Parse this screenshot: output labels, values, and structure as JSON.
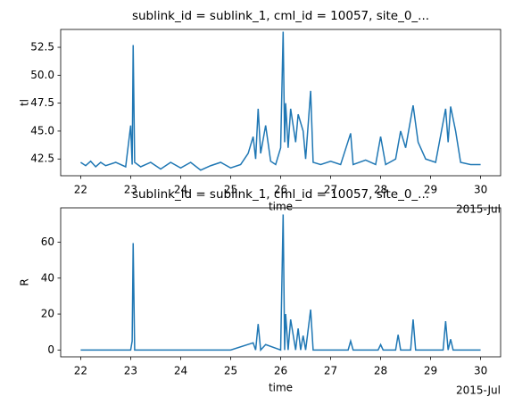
{
  "chart_data": [
    {
      "type": "line",
      "title": "sublink_id = sublink_1, cml_id = 10057, site_0_...",
      "xlabel": "time",
      "ylabel": "tl",
      "x_offset_label": "2015-Jul",
      "color": "#1f77b4",
      "x": [
        22.0,
        22.1,
        22.2,
        22.3,
        22.4,
        22.5,
        22.7,
        22.9,
        23.0,
        23.03,
        23.05,
        23.08,
        23.2,
        23.4,
        23.6,
        23.8,
        24.0,
        24.2,
        24.4,
        24.6,
        24.8,
        25.0,
        25.2,
        25.35,
        25.45,
        25.5,
        25.55,
        25.6,
        25.7,
        25.8,
        25.9,
        26.0,
        26.05,
        26.08,
        26.1,
        26.15,
        26.2,
        26.3,
        26.35,
        26.45,
        26.5,
        26.6,
        26.65,
        26.8,
        27.0,
        27.2,
        27.4,
        27.45,
        27.7,
        27.9,
        28.0,
        28.1,
        28.3,
        28.4,
        28.5,
        28.65,
        28.75,
        28.9,
        29.1,
        29.3,
        29.35,
        29.4,
        29.5,
        29.6,
        29.8,
        30.0
      ],
      "values": [
        42.2,
        41.9,
        42.3,
        41.8,
        42.2,
        41.9,
        42.2,
        41.8,
        45.5,
        42.0,
        52.7,
        42.2,
        41.8,
        42.2,
        41.6,
        42.2,
        41.7,
        42.2,
        41.5,
        41.9,
        42.2,
        41.7,
        42.0,
        43.0,
        44.5,
        42.5,
        47.0,
        43.0,
        45.5,
        42.3,
        42.0,
        43.5,
        53.9,
        44.0,
        47.5,
        43.5,
        47.0,
        44.0,
        46.5,
        45.0,
        42.5,
        48.6,
        42.2,
        42.0,
        42.3,
        42.0,
        44.8,
        42.0,
        42.4,
        42.0,
        44.5,
        42.0,
        42.5,
        45.0,
        43.5,
        47.3,
        44.0,
        42.5,
        42.2,
        47.0,
        44.0,
        47.2,
        45.0,
        42.2,
        42.0,
        42.0
      ],
      "xlim": [
        21.6,
        30.4
      ],
      "xticks": [
        22,
        23,
        24,
        25,
        26,
        27,
        28,
        29,
        30
      ],
      "ylim": [
        41.0,
        54.1
      ],
      "yticks": [
        42.5,
        {
          "value": 45,
          "label": "45.0"
        },
        47.5,
        {
          "value": 50,
          "label": "50.0"
        },
        52.5
      ]
    },
    {
      "type": "line",
      "title": "sublink_id = sublink_1, cml_id = 10057, site_0_...",
      "xlabel": "time",
      "ylabel": "R",
      "x_offset_label": "2015-Jul",
      "color": "#1f77b4",
      "x": [
        22.0,
        23.0,
        23.03,
        23.05,
        23.08,
        25.0,
        25.45,
        25.5,
        25.55,
        25.6,
        25.7,
        26.0,
        26.05,
        26.08,
        26.1,
        26.15,
        26.2,
        26.3,
        26.35,
        26.4,
        26.45,
        26.5,
        26.6,
        26.65,
        27.35,
        27.4,
        27.45,
        27.95,
        28.0,
        28.05,
        28.3,
        28.35,
        28.4,
        28.6,
        28.65,
        28.7,
        29.25,
        29.3,
        29.35,
        29.4,
        29.45,
        30.0
      ],
      "values": [
        0,
        0,
        5,
        59.5,
        0,
        0,
        4,
        0,
        14.5,
        0,
        3,
        0,
        75.4,
        0,
        20,
        0,
        17,
        0,
        12,
        0,
        8,
        0,
        22.5,
        0,
        0,
        5,
        0,
        0,
        3,
        0,
        0,
        8.5,
        0,
        0,
        17,
        0,
        0,
        16,
        0,
        6,
        0,
        0
      ],
      "xlim": [
        21.6,
        30.4
      ],
      "xticks": [
        22,
        23,
        24,
        25,
        26,
        27,
        28,
        29,
        30
      ],
      "ylim": [
        -3.8,
        79.1
      ],
      "yticks": [
        0,
        20,
        40,
        60
      ]
    }
  ]
}
